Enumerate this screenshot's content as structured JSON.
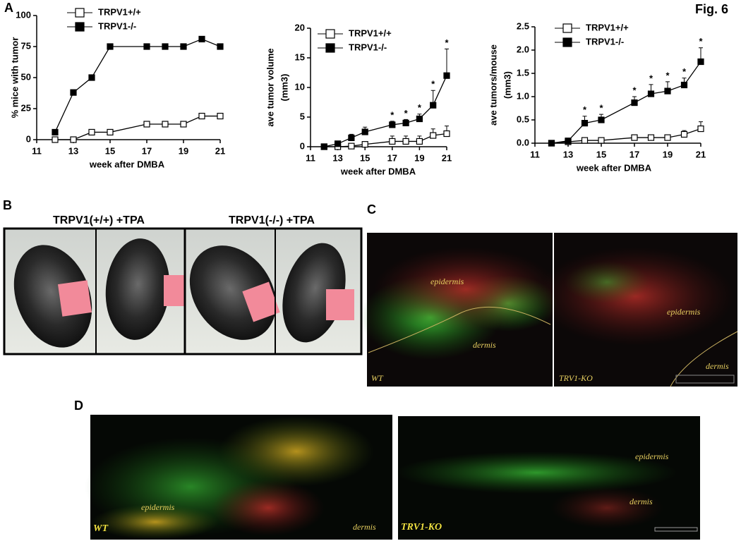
{
  "figure": {
    "title": "Fig. 6",
    "panel_a": "A",
    "panel_b": "B",
    "panel_c": "C",
    "panel_d": "D",
    "b_left": "TRPV1(+/+) +TPA",
    "b_right": "TRPV1(-/-) +TPA",
    "c_epidermis_wt": "epidermis",
    "c_dermis_wt": "dermis",
    "c_wt": "WT",
    "c_epidermis_ko": "epidermis",
    "c_dermis_ko": "dermis",
    "c_ko": "TRV1-KO",
    "d_epidermis_wt": "epidermis",
    "d_dermis_wt": "dermis",
    "d_wt": "WT",
    "d_epidermis_ko": "epidermis",
    "d_dermis_ko": "dermis",
    "d_ko": "TRV1-KO"
  },
  "chart_data": [
    {
      "type": "line",
      "ylabel": [
        "% mice with tumor"
      ],
      "xlabel": "week after DMBA",
      "x": [
        12,
        13,
        14,
        15,
        17,
        18,
        19,
        20,
        21
      ],
      "xlim": [
        11,
        21
      ],
      "xticks": [
        11,
        13,
        15,
        17,
        19,
        21
      ],
      "ylim": [
        0,
        100
      ],
      "yticks": [
        0,
        25,
        50,
        75,
        100
      ],
      "series": [
        {
          "name": "TRPV1+/+",
          "color": "#000000",
          "marker": "open",
          "values": [
            0,
            0,
            6,
            6,
            12.5,
            12.5,
            12.5,
            19,
            19
          ]
        },
        {
          "name": "TRPV1-/-",
          "color": "#000000",
          "marker": "filled",
          "values": [
            6,
            38,
            50,
            75,
            75,
            75,
            75,
            81,
            75
          ]
        }
      ]
    },
    {
      "type": "line",
      "ylabel": [
        "ave tumor volume",
        "(mm3)"
      ],
      "xlabel": "week after DMBA",
      "x": [
        12,
        13,
        14,
        15,
        17,
        18,
        19,
        20,
        21
      ],
      "xlim": [
        11,
        21
      ],
      "xticks": [
        11,
        13,
        15,
        17,
        19,
        21
      ],
      "ylim": [
        0,
        20
      ],
      "yticks": [
        0,
        5,
        10,
        15,
        20
      ],
      "series": [
        {
          "name": "TRPV1+/+",
          "color": "#000000",
          "marker": "open",
          "values": [
            0,
            0,
            0.1,
            0.4,
            0.9,
            0.9,
            0.9,
            1.9,
            2.2
          ],
          "errors": [
            0,
            0,
            0.2,
            0.4,
            0.9,
            0.9,
            0.9,
            1.1,
            1.3
          ]
        },
        {
          "name": "TRPV1-/-",
          "color": "#000000",
          "marker": "filled",
          "values": [
            0,
            0.5,
            1.5,
            2.5,
            3.7,
            4,
            4.7,
            7,
            12
          ],
          "errors": [
            0,
            0.2,
            0.6,
            0.8,
            0.6,
            0.6,
            0.8,
            2.5,
            4.5
          ]
        }
      ],
      "annotations": [
        {
          "x": 17,
          "text": "*"
        },
        {
          "x": 18,
          "text": "*"
        },
        {
          "x": 19,
          "text": "*"
        },
        {
          "x": 20,
          "text": "*"
        },
        {
          "x": 21,
          "text": "*"
        }
      ]
    },
    {
      "type": "line",
      "ylabel": [
        "ave tumors/mouse",
        "(mm3)"
      ],
      "xlabel": "week after DMBA",
      "x": [
        12,
        13,
        14,
        15,
        17,
        18,
        19,
        20,
        21
      ],
      "xlim": [
        11,
        21
      ],
      "xticks": [
        11,
        13,
        15,
        17,
        19,
        21
      ],
      "ylim": [
        0,
        2.5
      ],
      "yticks": [
        {
          "value": 0,
          "label": "0.0"
        },
        0.5,
        {
          "value": 1,
          "label": "1.0"
        },
        1.5,
        {
          "value": 2,
          "label": "2.0"
        },
        2.5
      ],
      "series": [
        {
          "name": "TRPV1+/+",
          "color": "#000000",
          "marker": "open",
          "values": [
            0,
            0.03,
            0.06,
            0.06,
            0.12,
            0.12,
            0.12,
            0.19,
            0.31
          ],
          "errors": [
            0,
            0.02,
            0.04,
            0.04,
            0.05,
            0.05,
            0.05,
            0.08,
            0.15
          ]
        },
        {
          "name": "TRPV1-/-",
          "color": "#000000",
          "marker": "filled",
          "values": [
            0,
            0.05,
            0.43,
            0.5,
            0.87,
            1.06,
            1.12,
            1.25,
            1.75
          ],
          "errors": [
            0,
            0.03,
            0.15,
            0.12,
            0.13,
            0.2,
            0.2,
            0.15,
            0.3
          ]
        }
      ],
      "annotations": [
        {
          "x": 14,
          "text": "*"
        },
        {
          "x": 15,
          "text": "*"
        },
        {
          "x": 17,
          "text": "*"
        },
        {
          "x": 18,
          "text": "*"
        },
        {
          "x": 19,
          "text": "*"
        },
        {
          "x": 20,
          "text": "*"
        },
        {
          "x": 21,
          "text": "*"
        }
      ]
    }
  ]
}
